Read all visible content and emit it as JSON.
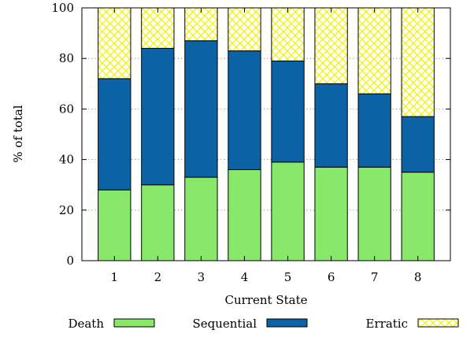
{
  "chart_data": {
    "type": "bar",
    "stacked": true,
    "title": "",
    "xlabel": "Current State",
    "ylabel": "% of total",
    "ylim": [
      0,
      100
    ],
    "yticks": [
      0,
      20,
      40,
      60,
      80,
      100
    ],
    "grid": "horizontal dotted",
    "legend_position": "bottom",
    "categories": [
      "1",
      "2",
      "3",
      "4",
      "5",
      "6",
      "7",
      "8"
    ],
    "series": [
      {
        "name": "Death",
        "color": "#88e86a",
        "pattern": "solid",
        "values": [
          28,
          30,
          33,
          36,
          39,
          37,
          37,
          35
        ]
      },
      {
        "name": "Sequential",
        "color": "#0b63a5",
        "pattern": "solid",
        "values": [
          44,
          54,
          54,
          47,
          40,
          33,
          29,
          22
        ]
      },
      {
        "name": "Erratic",
        "color": "#ffff33",
        "pattern": "crosshatch",
        "values": [
          28,
          16,
          13,
          17,
          21,
          30,
          34,
          43
        ]
      }
    ]
  }
}
